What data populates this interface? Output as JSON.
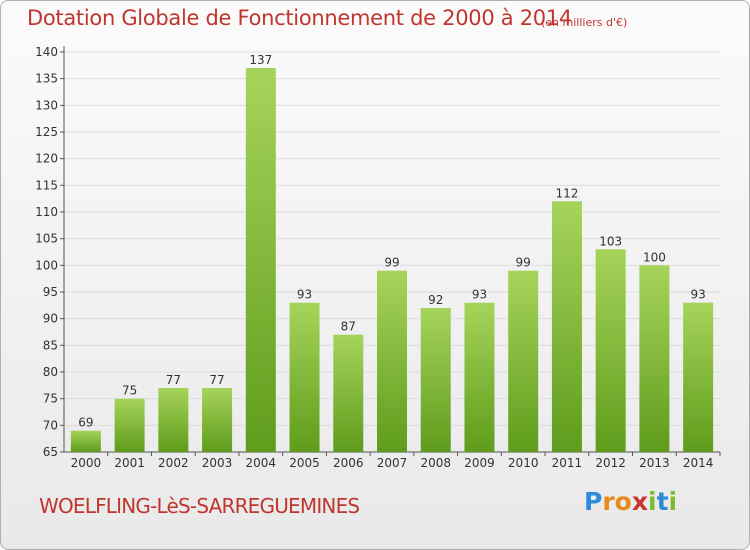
{
  "title": "Dotation Globale de Fonctionnement de 2000 à 2014",
  "unit_note": "(en milliers d'€)",
  "town": "WOELFLING-LèS-SARREGUEMINES",
  "logo": {
    "letters": [
      "P",
      "r",
      "o",
      "x",
      "i",
      "t",
      "i"
    ],
    "colors": [
      "#2e8bd8",
      "#e8891a",
      "#e8891a",
      "#c8352f",
      "#7cbd2e",
      "#2e8bd8",
      "#7cbd2e"
    ]
  },
  "colors": {
    "bar_light": "#a6d45a",
    "bar_dark": "#5f9c1c",
    "title": "#c0362f",
    "grid": "#dcdcdc"
  },
  "chart_data": {
    "type": "bar",
    "categories": [
      "2000",
      "2001",
      "2002",
      "2003",
      "2004",
      "2005",
      "2006",
      "2007",
      "2008",
      "2009",
      "2010",
      "2011",
      "2012",
      "2013",
      "2014"
    ],
    "values": [
      69,
      75,
      77,
      77,
      137,
      93,
      87,
      99,
      92,
      93,
      99,
      112,
      103,
      100,
      93
    ],
    "title": "Dotation Globale de Fonctionnement de 2000 à 2014",
    "ylim": [
      65,
      140
    ],
    "yticks": [
      65,
      70,
      75,
      80,
      85,
      90,
      95,
      100,
      105,
      110,
      115,
      120,
      125,
      130,
      135,
      140
    ],
    "grid": true,
    "data_labels": true
  }
}
